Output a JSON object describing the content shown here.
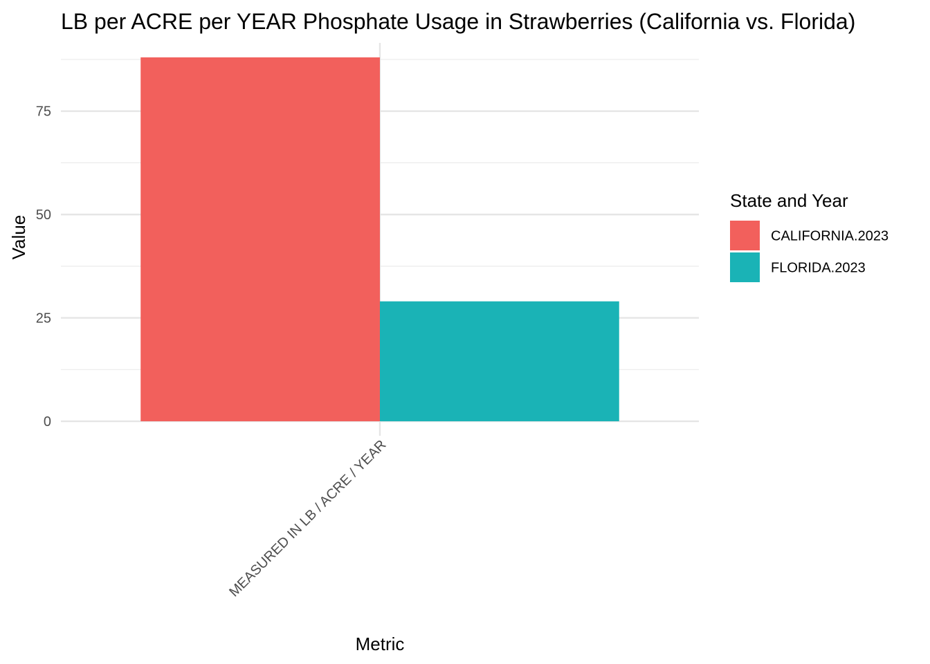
{
  "chart_data": {
    "type": "bar",
    "title": "LB per ACRE per YEAR Phosphate Usage in Strawberries (California vs. Florida)",
    "xlabel": "Metric",
    "ylabel": "Value",
    "categories": [
      "MEASURED IN LB / ACRE / YEAR"
    ],
    "series": [
      {
        "name": "CALIFORNIA.2023",
        "color": "#F2605C",
        "values": [
          88
        ]
      },
      {
        "name": "FLORIDA.2023",
        "color": "#1AB3B6",
        "values": [
          29
        ]
      }
    ],
    "yticks": [
      0,
      25,
      50,
      75
    ],
    "ylim": [
      -3.5,
      91.5
    ],
    "grid": true,
    "legend": {
      "title": "State and Year",
      "position": "right"
    }
  }
}
